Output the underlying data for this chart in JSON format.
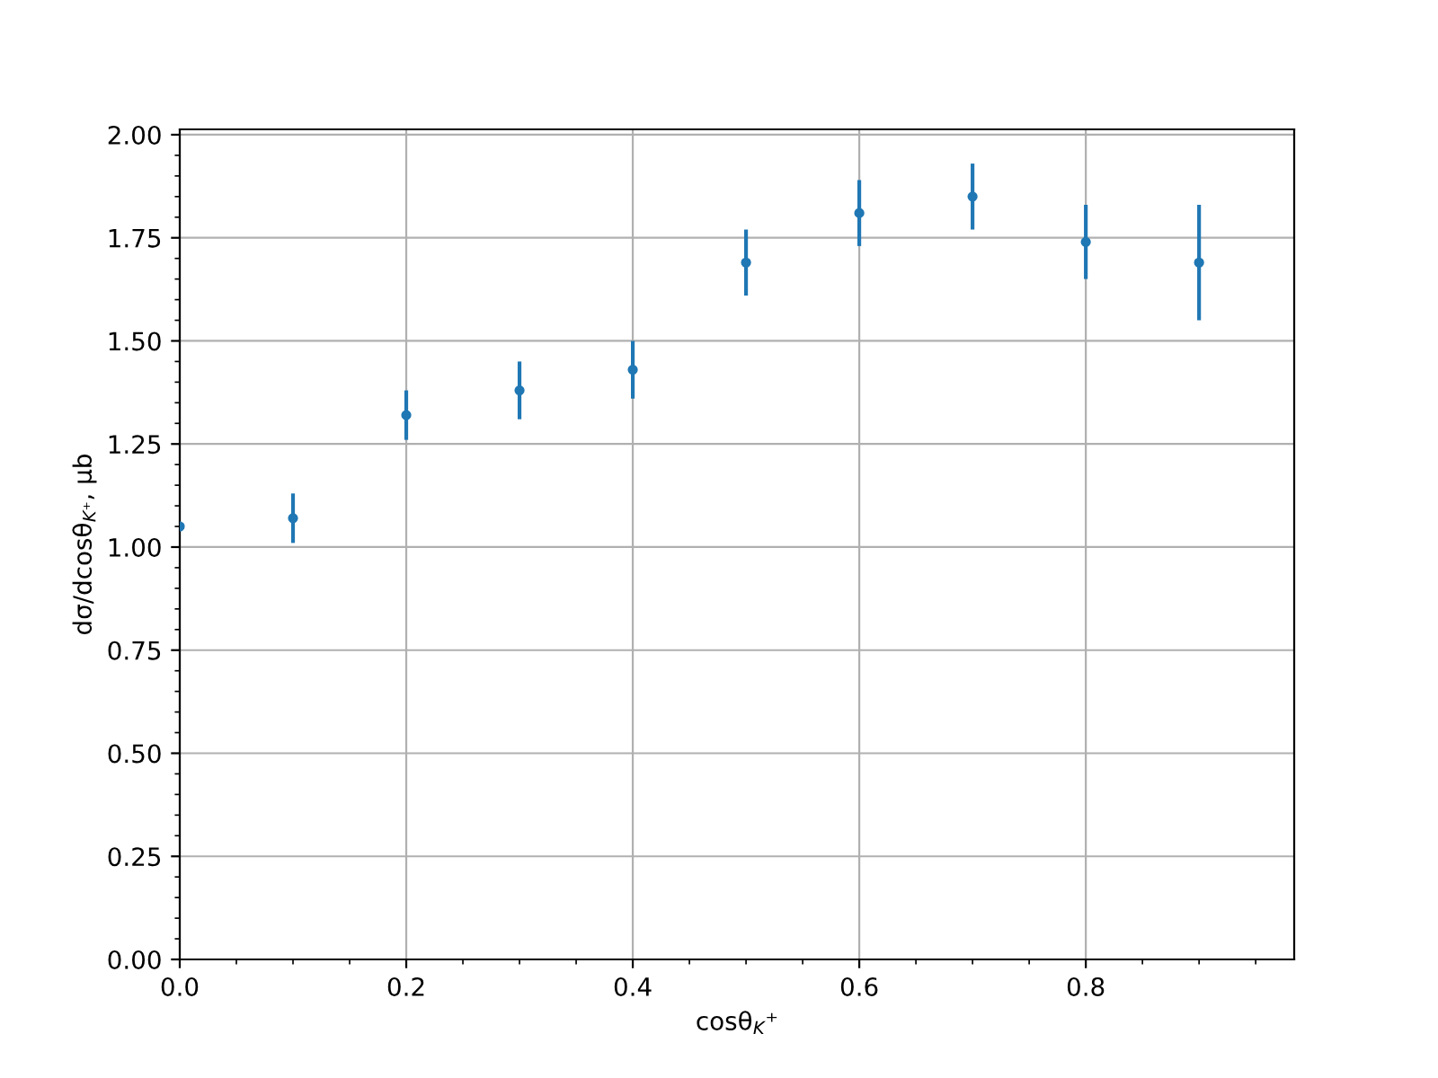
{
  "chart_data": {
    "type": "scatter",
    "xlabel": "cosθ$_{K}$⁺",
    "ylabel": "dσ/dcosθ$_{K⁺}$, μb",
    "x": [
      0.0,
      0.1,
      0.2,
      0.3,
      0.4,
      0.5,
      0.6,
      0.7,
      0.8,
      0.9
    ],
    "values": [
      1.05,
      1.07,
      1.32,
      1.38,
      1.43,
      1.69,
      1.81,
      1.85,
      1.74,
      1.69
    ],
    "errors": [
      null,
      0.06,
      0.06,
      0.07,
      0.07,
      0.08,
      0.08,
      0.08,
      0.09,
      0.14
    ],
    "color": "#1f77b4",
    "marker": "circle",
    "grid": true,
    "xlim": [
      0,
      0.984
    ],
    "ylim": [
      0,
      2.013
    ],
    "xticks": [
      {
        "value": 0,
        "label": "0.0"
      },
      0.2,
      0.4,
      0.6,
      0.8,
      {
        "value": 0.05,
        "label": null
      },
      {
        "value": 0.1,
        "label": null
      },
      {
        "value": 0.15,
        "label": null
      },
      {
        "value": 0.25,
        "label": null
      },
      {
        "value": 0.3,
        "label": null
      },
      {
        "value": 0.35,
        "label": null
      },
      {
        "value": 0.45,
        "label": null
      },
      {
        "value": 0.5,
        "label": null
      },
      {
        "value": 0.55,
        "label": null
      },
      {
        "value": 0.65,
        "label": null
      },
      {
        "value": 0.7,
        "label": null
      },
      {
        "value": 0.75,
        "label": null
      },
      {
        "value": 0.85,
        "label": null
      },
      {
        "value": 0.9,
        "label": null
      },
      {
        "value": 0.95,
        "label": null
      }
    ],
    "yticks": [
      {
        "value": 0,
        "label": "0.00"
      },
      0.25,
      {
        "value": 0.5,
        "label": "0.50"
      },
      0.75,
      {
        "value": 1,
        "label": "1.00"
      },
      1.25,
      {
        "value": 1.5,
        "label": "1.50"
      },
      1.75,
      {
        "value": 2,
        "label": "2.00"
      },
      {
        "value": 0.05,
        "label": null
      },
      {
        "value": 0.1,
        "label": null
      },
      {
        "value": 0.15,
        "label": null
      },
      {
        "value": 0.2,
        "label": null
      },
      {
        "value": 0.3,
        "label": null
      },
      {
        "value": 0.35,
        "label": null
      },
      {
        "value": 0.4,
        "label": null
      },
      {
        "value": 0.45,
        "label": null
      },
      {
        "value": 0.55,
        "label": null
      },
      {
        "value": 0.6,
        "label": null
      },
      {
        "value": 0.65,
        "label": null
      },
      {
        "value": 0.7,
        "label": null
      },
      {
        "value": 0.8,
        "label": null
      },
      {
        "value": 0.85,
        "label": null
      },
      {
        "value": 0.9,
        "label": null
      },
      {
        "value": 0.95,
        "label": null
      },
      {
        "value": 1.05,
        "label": null
      },
      {
        "value": 1.1,
        "label": null
      },
      {
        "value": 1.15,
        "label": null
      },
      {
        "value": 1.2,
        "label": null
      },
      {
        "value": 1.3,
        "label": null
      },
      {
        "value": 1.35,
        "label": null
      },
      {
        "value": 1.4,
        "label": null
      },
      {
        "value": 1.45,
        "label": null
      },
      {
        "value": 1.55,
        "label": null
      },
      {
        "value": 1.6,
        "label": null
      },
      {
        "value": 1.65,
        "label": null
      },
      {
        "value": 1.7,
        "label": null
      },
      {
        "value": 1.8,
        "label": null
      },
      {
        "value": 1.85,
        "label": null
      },
      {
        "value": 1.9,
        "label": null
      },
      {
        "value": 1.95,
        "label": null
      }
    ]
  }
}
